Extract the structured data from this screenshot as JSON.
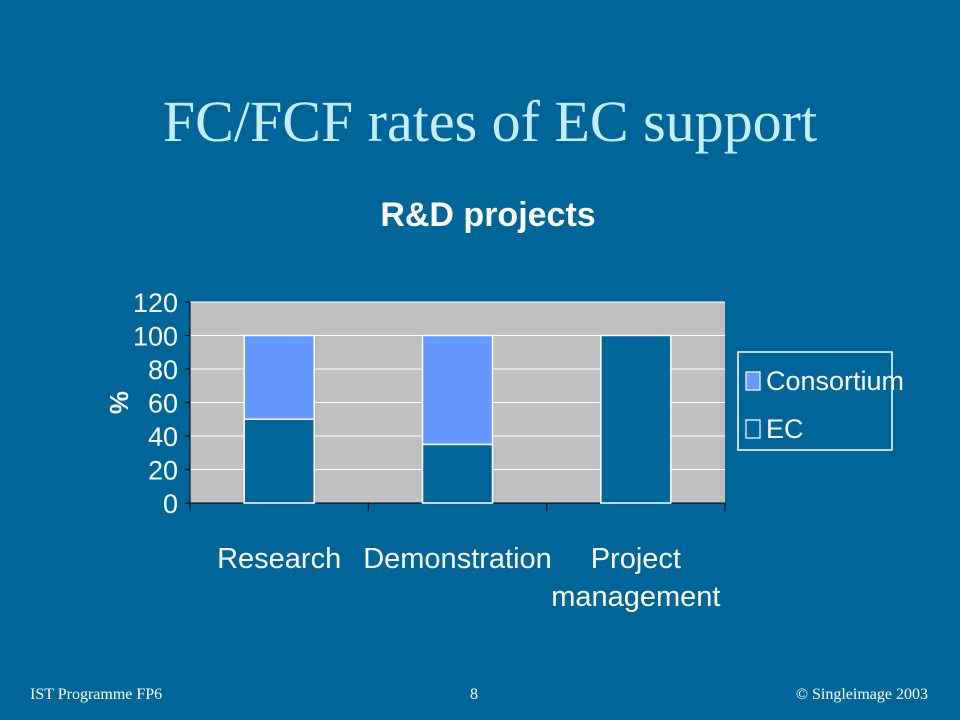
{
  "slide": {
    "title": "FC/FCF rates of EC support"
  },
  "footer": {
    "left": "IST Programme FP6",
    "center": "8",
    "right": "© Singleimage 2003"
  },
  "colors": {
    "background": "#006699",
    "plot_area": "#c0c0c0",
    "consortium": "#6699ff",
    "ec": "#006699",
    "legend_bg": "#006699"
  },
  "chart_data": {
    "type": "bar",
    "stacked": true,
    "title": "R&D projects",
    "ylabel": "%",
    "xlabel": "",
    "ylim": [
      0,
      120
    ],
    "yticks": [
      0,
      20,
      40,
      60,
      80,
      100,
      120
    ],
    "grid": true,
    "legend_position": "right",
    "categories": [
      [
        "Research"
      ],
      [
        "Demonstration"
      ],
      [
        "Project",
        "management"
      ]
    ],
    "series": [
      {
        "name": "EC",
        "values": [
          50,
          35,
          100
        ]
      },
      {
        "name": "Consortium",
        "values": [
          50,
          65,
          0
        ]
      }
    ],
    "legend_order": [
      "Consortium",
      "EC"
    ]
  }
}
